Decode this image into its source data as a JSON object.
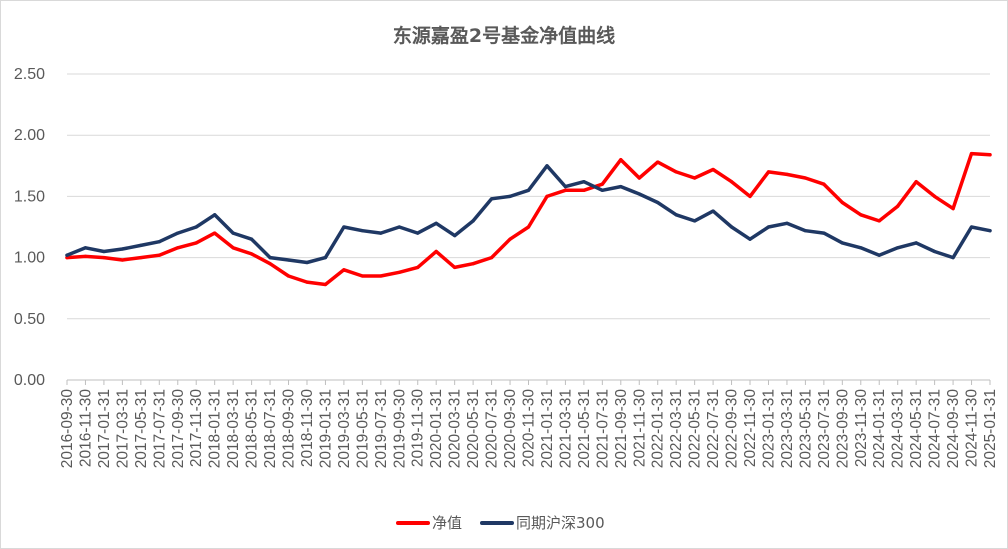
{
  "chart_data": {
    "type": "line",
    "title": "东源嘉盈2号基金净值曲线",
    "xlabel": "",
    "ylabel": "",
    "ylim": [
      0,
      2.5
    ],
    "yticks": [
      "0.00",
      "0.50",
      "1.00",
      "1.50",
      "2.00",
      "2.50"
    ],
    "grid": "horizontal",
    "legend_position": "bottom",
    "x": [
      "2016-09-30",
      "2016-11-30",
      "2017-01-31",
      "2017-03-31",
      "2017-05-31",
      "2017-07-31",
      "2017-09-30",
      "2017-11-30",
      "2018-01-31",
      "2018-03-31",
      "2018-05-31",
      "2018-07-31",
      "2018-09-30",
      "2018-11-30",
      "2019-01-31",
      "2019-03-31",
      "2019-05-31",
      "2019-07-31",
      "2019-09-30",
      "2019-11-30",
      "2020-01-31",
      "2020-03-31",
      "2020-05-31",
      "2020-07-31",
      "2020-09-30",
      "2020-11-30",
      "2021-01-31",
      "2021-03-31",
      "2021-05-31",
      "2021-07-31",
      "2021-09-30",
      "2021-11-30",
      "2022-01-31",
      "2022-03-31",
      "2022-05-31",
      "2022-07-31",
      "2022-09-30",
      "2022-11-30",
      "2023-01-31",
      "2023-03-31",
      "2023-05-31",
      "2023-07-31",
      "2023-09-30",
      "2023-11-30",
      "2024-01-31",
      "2024-03-31",
      "2024-05-31",
      "2024-07-31",
      "2024-09-30",
      "2024-11-30",
      "2025-01-31"
    ],
    "series": [
      {
        "name": "净值",
        "color": "#ff0000",
        "values": [
          1.0,
          1.01,
          1.0,
          0.98,
          1.0,
          1.02,
          1.08,
          1.12,
          1.2,
          1.08,
          1.03,
          0.95,
          0.85,
          0.8,
          0.78,
          0.9,
          0.85,
          0.85,
          0.88,
          0.92,
          1.05,
          0.92,
          0.95,
          1.0,
          1.15,
          1.25,
          1.5,
          1.55,
          1.55,
          1.6,
          1.8,
          1.65,
          1.78,
          1.7,
          1.65,
          1.72,
          1.62,
          1.5,
          1.7,
          1.68,
          1.65,
          1.6,
          1.45,
          1.35,
          1.3,
          1.42,
          1.62,
          1.5,
          1.4,
          1.85,
          1.84
        ]
      },
      {
        "name": "同期沪深300",
        "color": "#1f3864",
        "values": [
          1.02,
          1.08,
          1.05,
          1.07,
          1.1,
          1.13,
          1.2,
          1.25,
          1.35,
          1.2,
          1.15,
          1.0,
          0.98,
          0.96,
          1.0,
          1.25,
          1.22,
          1.2,
          1.25,
          1.2,
          1.28,
          1.18,
          1.3,
          1.48,
          1.5,
          1.55,
          1.75,
          1.58,
          1.62,
          1.55,
          1.58,
          1.52,
          1.45,
          1.35,
          1.3,
          1.38,
          1.25,
          1.15,
          1.25,
          1.28,
          1.22,
          1.2,
          1.12,
          1.08,
          1.02,
          1.08,
          1.12,
          1.05,
          1.0,
          1.25,
          1.22
        ]
      }
    ]
  }
}
